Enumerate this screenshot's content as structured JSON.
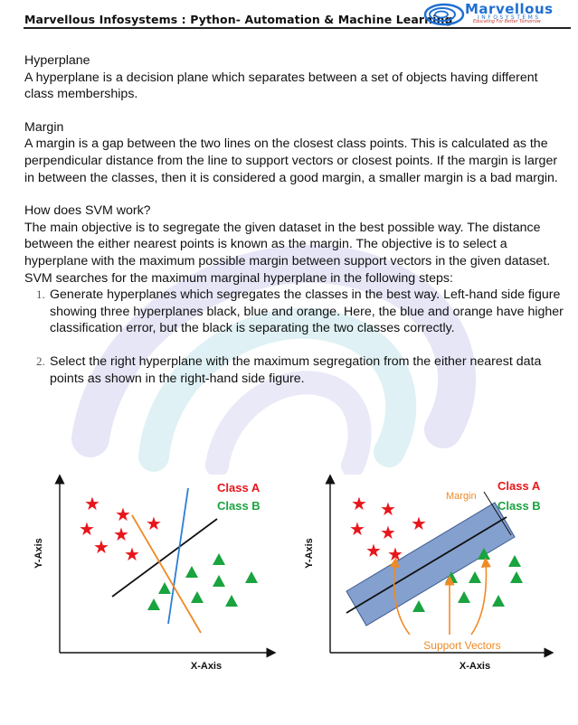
{
  "header": {
    "title": "Marvellous Infosystems : Python- Automation & Machine Learning",
    "logo_word": "Marvellous",
    "logo_sub": "INFOSYSTEMS",
    "logo_tag": "Educating For Better Tomorrow"
  },
  "sections": {
    "hyperplane": {
      "heading": "Hyperplane",
      "body": "A hyperplane is a decision plane which separates between a set of objects having different class memberships."
    },
    "margin": {
      "heading": "Margin",
      "body": "A margin is a gap between the two lines on the closest class points. This is calculated as the perpendicular distance from the line to support vectors or closest points. If the margin is larger in between the classes, then it is considered a good margin, a smaller margin is a bad margin."
    },
    "how_svm": {
      "heading": "How does SVM work?",
      "body": "The main objective is to segregate the given dataset in the best possible way. The distance between the either nearest points is known as the margin. The objective is to select a hyperplane with the maximum possible margin between support vectors in the given dataset. SVM searches for the maximum marginal hyperplane in the following steps:",
      "steps": [
        "Generate hyperplanes which segregates the classes in the best way. Left-hand side figure showing three hyperplanes black, blue and orange. Here, the blue and orange have higher classification error, but the black is separating the two classes correctly.",
        "Select the right hyperplane with the maximum segregation from the either nearest data points as shown in the right-hand side figure."
      ]
    }
  },
  "figures": {
    "left": {
      "class_a": "Class A",
      "class_b": "Class B",
      "xlabel": "X-Axis",
      "ylabel": "Y-Axis"
    },
    "right": {
      "class_a": "Class A",
      "class_b": "Class B",
      "xlabel": "X-Axis",
      "ylabel": "Y-Axis",
      "margin_label": "Margin",
      "support_label": "Support Vectors"
    }
  },
  "colors": {
    "class_a": "#e8151b",
    "class_b": "#1aa33f",
    "blue_line": "#2a7fd4",
    "orange_line": "#f08a24",
    "margin_band": "#6f8fc5",
    "header_rule": "#222222"
  }
}
